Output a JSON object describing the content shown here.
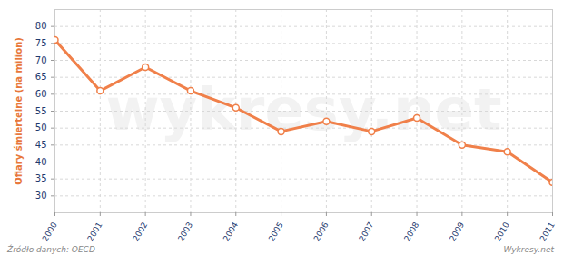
{
  "chart_data": {
    "type": "line",
    "y_label": "Ofiary śmiertelne (na milion)",
    "x": [
      2000,
      2001,
      2002,
      2003,
      2004,
      2005,
      2006,
      2007,
      2008,
      2009,
      2010,
      2011
    ],
    "values": [
      76,
      61,
      68,
      61,
      56,
      49,
      52,
      49,
      53,
      45,
      43,
      34
    ],
    "color": "#f0804a",
    "marker": "circle",
    "xlim": [
      2000,
      2011
    ],
    "xticks": [
      2000,
      2001,
      2002,
      2003,
      2004,
      2005,
      2006,
      2007,
      2008,
      2009,
      2010,
      2011
    ],
    "ylim": [
      25,
      85
    ],
    "yticks": [
      30,
      35,
      40,
      45,
      50,
      55,
      60,
      65,
      70,
      75,
      80
    ],
    "grid": true,
    "watermark": "wykresy.net",
    "source": "Źródło danych: OECD",
    "credit": "Wykresy.net"
  }
}
